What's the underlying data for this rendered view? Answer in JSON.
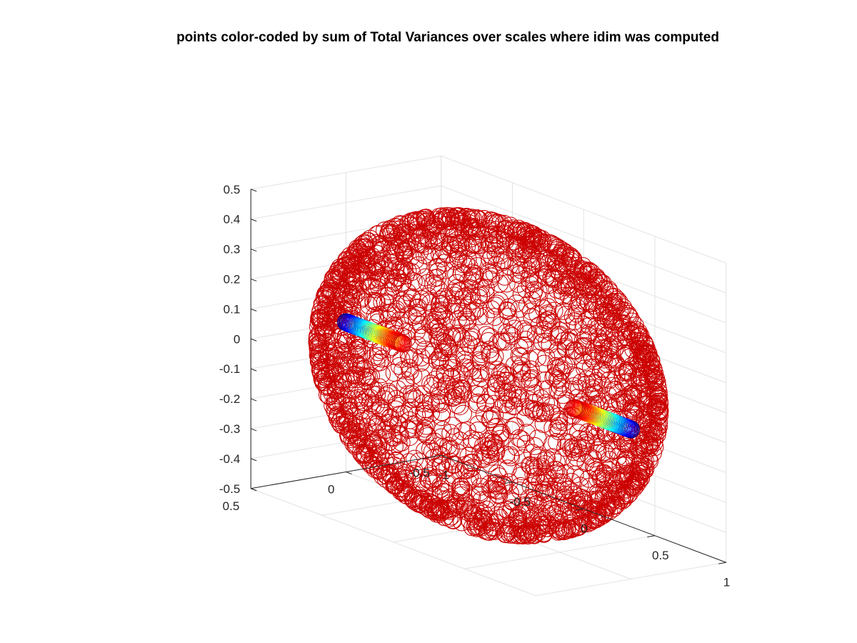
{
  "chart_data": {
    "type": "scatter",
    "title": "points color-coded by sum of Total Variances over scales where idim was computed",
    "xlabel": "",
    "ylabel": "",
    "zlabel": "",
    "xlim": [
      -1,
      1
    ],
    "ylim": [
      -0.5,
      0.5
    ],
    "zlim": [
      -0.5,
      0.5
    ],
    "x_ticks": [
      "-1",
      "-0.5",
      "0",
      "0.5",
      "1"
    ],
    "y_ticks": [
      "-0.5",
      "0",
      "0.5"
    ],
    "z_ticks": [
      "-0.5",
      "-0.4",
      "-0.3",
      "-0.2",
      "-0.1",
      "0",
      "0.1",
      "0.2",
      "0.3",
      "0.4",
      "0.5"
    ],
    "grid": true,
    "marker": "open-circle",
    "colormap": [
      "#00008f",
      "#0000ff",
      "#0080ff",
      "#00ffff",
      "#80ff80",
      "#ffff00",
      "#ff8000",
      "#ff0000",
      "#cc0000"
    ],
    "series": [
      {
        "shape": "ellipsoid-surface",
        "center": [
          0,
          0,
          0
        ],
        "semi_axes": [
          1.0,
          0.5,
          0.5
        ],
        "approx_point_count": 2500,
        "color_value": 1.0,
        "color": "#cc0000"
      },
      {
        "shape": "line-segment",
        "start": [
          -1.0,
          0,
          0
        ],
        "end": [
          -0.6,
          0,
          0
        ],
        "approx_point_count": 60,
        "color_value_range": [
          0,
          1
        ]
      },
      {
        "shape": "line-segment",
        "start": [
          1.0,
          0,
          0
        ],
        "end": [
          0.6,
          0,
          0
        ],
        "approx_point_count": 60,
        "color_value_range": [
          0,
          1
        ]
      }
    ]
  }
}
